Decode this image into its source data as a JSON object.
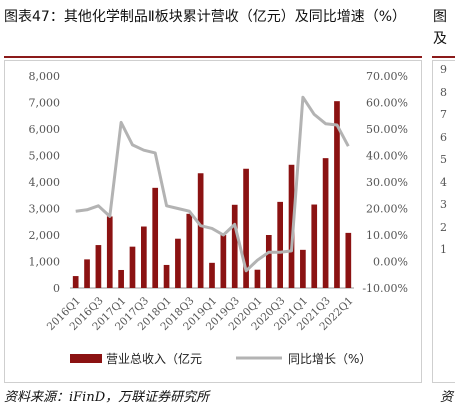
{
  "figure": {
    "title": "图表47：其他化学制品Ⅱ板块累计营收（亿元）及同比增速（%）",
    "source": "资料来源：iFinD，万联证券研究所"
  },
  "next_figure": {
    "title_fragment": "图",
    "title_line2_fragment": "及",
    "tick_labels": [
      "9",
      "8",
      "7",
      "6",
      "5",
      "4",
      "3",
      "2",
      "1"
    ],
    "source_fragment": "资"
  },
  "colors": {
    "bar": "#8b1212",
    "line": "#b3b3b3",
    "accent_rule": "#8b1a1a"
  },
  "chart_data": {
    "type": "bar",
    "categories": [
      "2016Q1",
      "2016Q2",
      "2016Q3",
      "2016Q4",
      "2017Q1",
      "2017Q2",
      "2017Q3",
      "2017Q4",
      "2018Q1",
      "2018Q2",
      "2018Q3",
      "2018Q4",
      "2019Q1",
      "2019Q2",
      "2019Q3",
      "2019Q4",
      "2020Q1",
      "2020Q2",
      "2020Q3",
      "2020Q4",
      "2021Q1",
      "2021Q2",
      "2021Q3",
      "2021Q4",
      "2022Q1"
    ],
    "tick_labels": [
      "2016Q1",
      "2016Q3",
      "2017Q1",
      "2017Q3",
      "2018Q1",
      "2018Q3",
      "2019Q1",
      "2019Q3",
      "2020Q1",
      "2020Q3",
      "2021Q1",
      "2021Q3",
      "2022Q1"
    ],
    "series": [
      {
        "name": "营业总收入（亿元",
        "type": "bar",
        "axis": "left",
        "values": [
          450,
          1080,
          1620,
          2700,
          680,
          1560,
          2320,
          3780,
          870,
          1860,
          2800,
          4330,
          950,
          2000,
          3140,
          4500,
          690,
          2000,
          3250,
          4650,
          1440,
          3150,
          4900,
          7050,
          2080
        ]
      },
      {
        "name": "同比增长（%）",
        "type": "line",
        "axis": "right",
        "values": [
          19,
          19.5,
          21,
          17,
          52.5,
          44,
          42,
          41,
          21,
          20,
          19,
          13.5,
          12.5,
          10,
          14,
          -3.5,
          0.5,
          3.5,
          3.5,
          4,
          62,
          55.5,
          52,
          51.5,
          43.5
        ]
      }
    ],
    "y_left": {
      "ylim": [
        0,
        8000
      ],
      "ticks": [
        "0",
        "1,000",
        "2,000",
        "3,000",
        "4,000",
        "5,000",
        "6,000",
        "7,000",
        "8,000"
      ]
    },
    "y_right": {
      "ylim": [
        -10,
        70
      ],
      "ticks": [
        "-10.00%",
        "0.00%",
        "10.00%",
        "20.00%",
        "30.00%",
        "40.00%",
        "50.00%",
        "60.00%",
        "70.00%"
      ]
    },
    "legend": {
      "position": "bottom"
    },
    "grid": false
  }
}
